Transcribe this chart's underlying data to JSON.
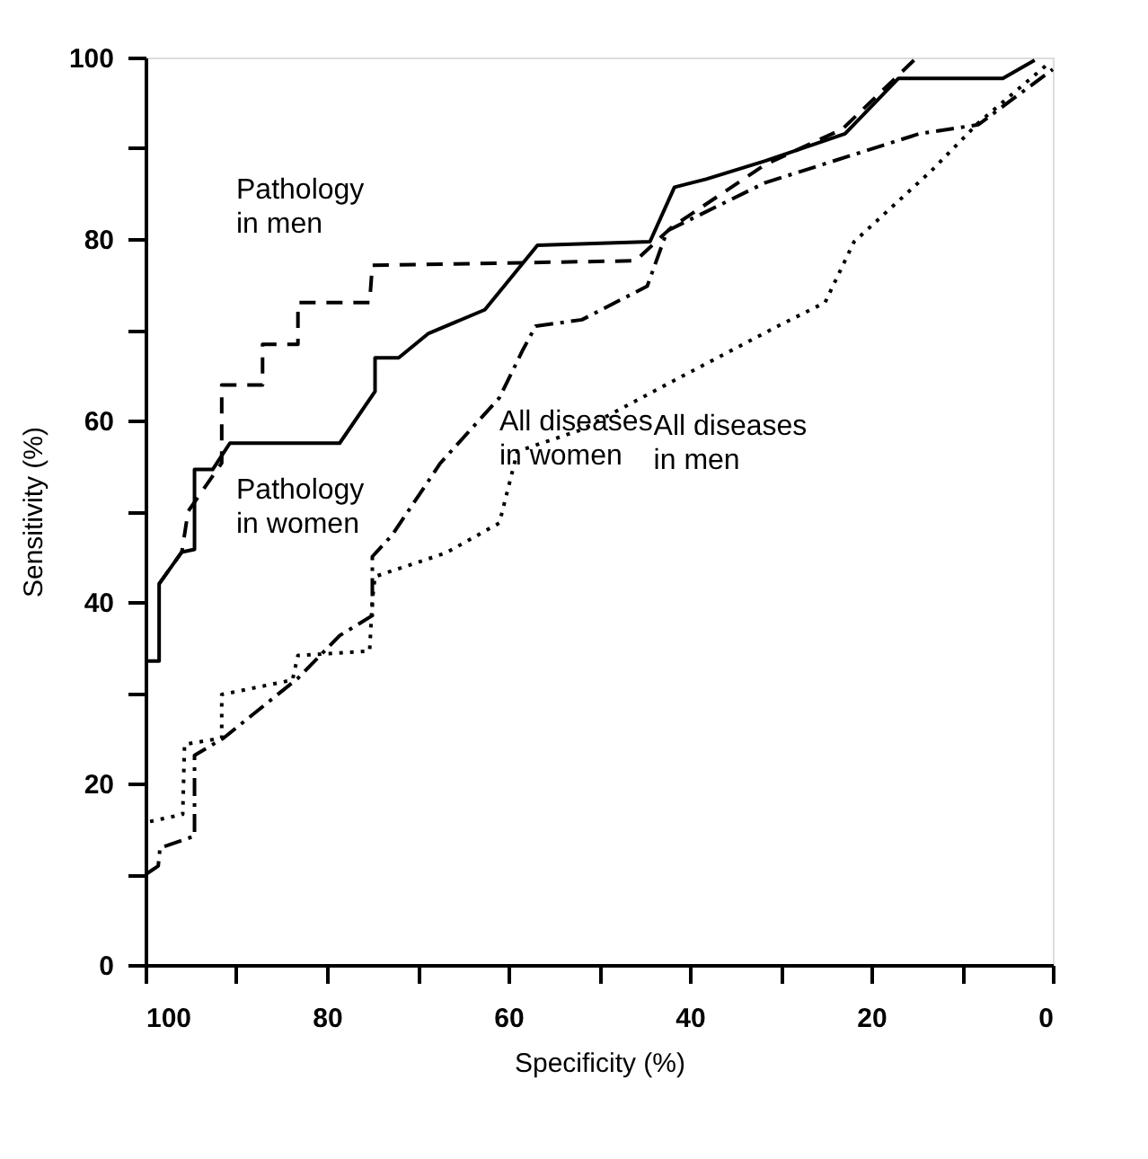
{
  "chart_data": {
    "type": "line",
    "xlabel": "Specificity (%)",
    "ylabel": "Sensitivity (%)",
    "xlim": [
      100,
      0
    ],
    "xticks": [
      100,
      {
        "value": 90,
        "label": null
      },
      80,
      {
        "value": 70,
        "label": null
      },
      60,
      {
        "value": 50,
        "label": null
      },
      40,
      {
        "value": 30,
        "label": null
      },
      20,
      {
        "value": 10,
        "label": null
      },
      0
    ],
    "ylim": [
      0,
      100
    ],
    "yticks": [
      0,
      {
        "value": 10,
        "label": null
      },
      20,
      {
        "value": 30,
        "label": null
      },
      40,
      {
        "value": 50,
        "label": null
      },
      60,
      {
        "value": 70,
        "label": null
      },
      80,
      {
        "value": 90,
        "label": null
      },
      100
    ],
    "grid": false,
    "marker": "none",
    "series": [
      {
        "name": "Pathology in men",
        "color": "#000000",
        "line_style": "dashed",
        "x": [
          98.5,
          96,
          95.3,
          91.6,
          91.6,
          87.1,
          87.1,
          83.2,
          83.2,
          75.3,
          75,
          46,
          42,
          31.7,
          23.2,
          15.3
        ],
        "values": [
          42,
          45.5,
          50,
          55.3,
          63.9,
          63.9,
          68.4,
          68.4,
          73,
          73,
          77.1,
          77.6,
          81.3,
          88.2,
          92.1,
          99.7
        ]
      },
      {
        "name": "Pathology in women",
        "color": "#000000",
        "line_style": "solid",
        "x": [
          100,
          98.5,
          98.5,
          96,
          94.6,
          94.6,
          92.6,
          90.7,
          78.6,
          74.7,
          74.7,
          72.1,
          68.8,
          62.6,
          56.8,
          44.4,
          41.7,
          38.2,
          31.7,
          22.9,
          17,
          5.5,
          2
        ],
        "values": [
          33.5,
          33.5,
          42,
          45.5,
          45.8,
          54.6,
          54.6,
          57.5,
          57.5,
          63.2,
          66.9,
          66.9,
          69.6,
          72.2,
          79.3,
          79.7,
          85.7,
          86.6,
          88.6,
          91.6,
          97.7,
          97.7,
          99.7
        ]
      },
      {
        "name": "All diseases in women",
        "color": "#000000",
        "line_style": "dashdot",
        "x": [
          99.8,
          98.6,
          98.4,
          94.6,
          94.6,
          91.4,
          83.2,
          78.6,
          75,
          75,
          72.8,
          67.5,
          61,
          58.4,
          57,
          51.9,
          44.7,
          42.5,
          31.7,
          14.7,
          8.2,
          0
        ],
        "values": [
          10.1,
          10.9,
          12.9,
          14.2,
          23.1,
          25,
          31.6,
          36.3,
          38.5,
          45,
          47.4,
          55.3,
          62.5,
          67.8,
          70.4,
          71.1,
          74.8,
          80.9,
          86.2,
          91.6,
          92.6,
          98.7
        ]
      },
      {
        "name": "All diseases in men",
        "color": "#000000",
        "line_style": "dotted",
        "x": [
          99.5,
          95.9,
          95.7,
          91.6,
          91.6,
          83.8,
          83.2,
          75.3,
          75,
          74.7,
          66.9,
          61,
          59,
          51.9,
          42.7,
          30.3,
          25.1,
          21.9,
          13.4,
          8.2,
          0.4
        ],
        "values": [
          15.8,
          16.6,
          24.3,
          25,
          29.8,
          31.4,
          34.1,
          34.6,
          40.2,
          42.8,
          45.4,
          48.7,
          56.6,
          59,
          63.9,
          70.4,
          73,
          79.7,
          87.5,
          92.8,
          99.4
        ]
      }
    ]
  }
}
